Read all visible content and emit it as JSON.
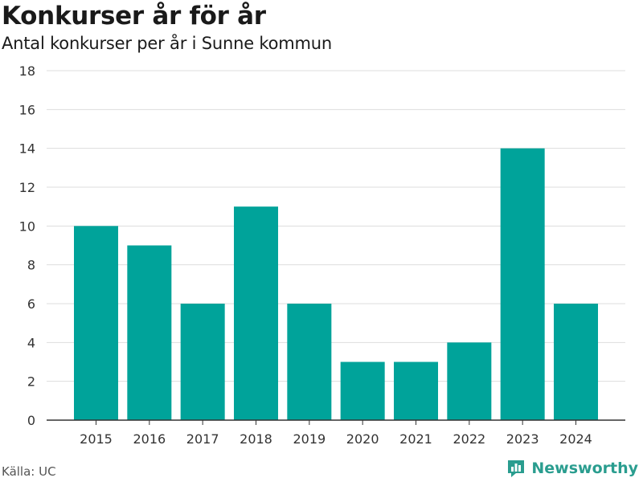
{
  "colors": {
    "bar": "#00a39a",
    "grid": "#dddddd",
    "axis": "#333333",
    "brand": "#2a9d8f"
  },
  "header": {
    "title": "Konkurser år för år",
    "subtitle": "Antal konkurser per år i Sunne kommun"
  },
  "footer": {
    "source": "Källa: UC",
    "brand_name": "Newsworthy",
    "brand_icon": "newsworthy-logo-icon"
  },
  "chart_data": {
    "type": "bar",
    "categories": [
      "2015",
      "2016",
      "2017",
      "2018",
      "2019",
      "2020",
      "2021",
      "2022",
      "2023",
      "2024"
    ],
    "values": [
      10,
      9,
      6,
      11,
      6,
      3,
      3,
      4,
      14,
      6
    ],
    "title": "Konkurser år för år",
    "subtitle": "Antal konkurser per år i Sunne kommun",
    "xlabel": "",
    "ylabel": "",
    "ylim": [
      0,
      18
    ],
    "yticks": [
      0,
      2,
      4,
      6,
      8,
      10,
      12,
      14,
      16,
      18
    ],
    "grid": true,
    "legend": "none"
  }
}
